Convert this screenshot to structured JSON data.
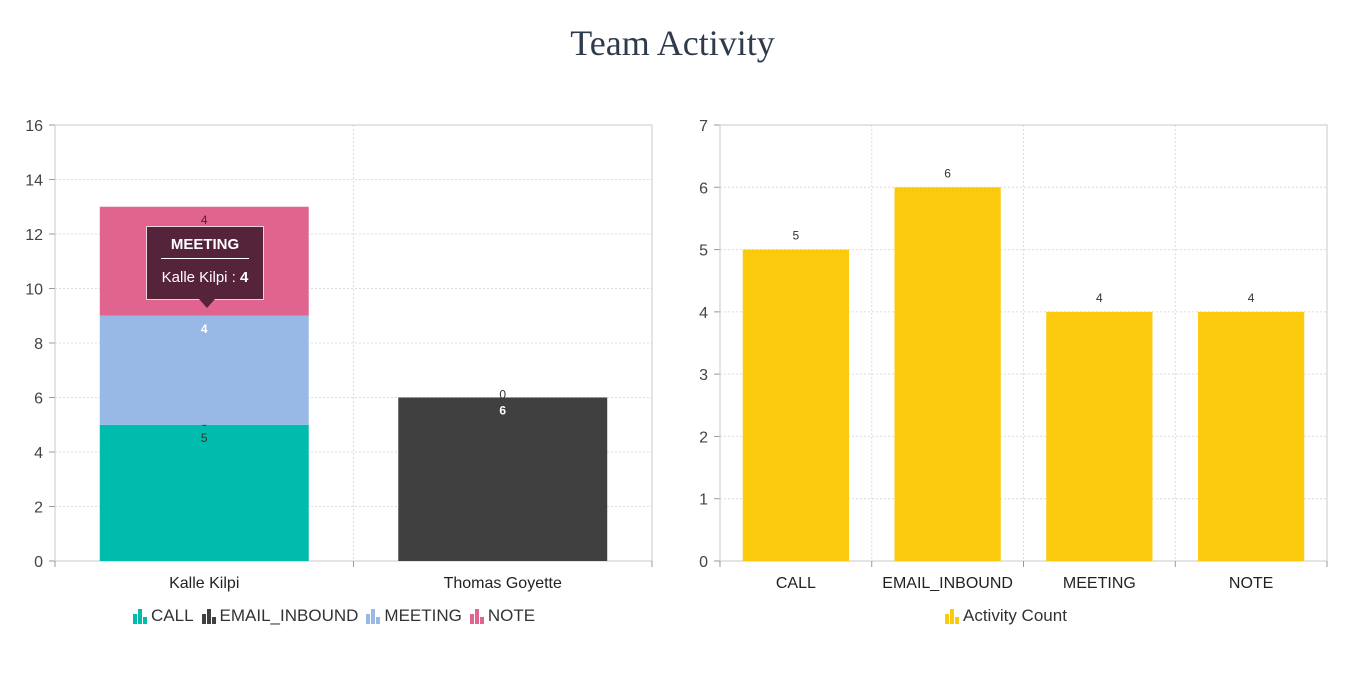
{
  "title": "Team Activity",
  "chart_data": [
    {
      "type": "bar",
      "stacked": true,
      "categories": [
        "Kalle Kilpi",
        "Thomas Goyette"
      ],
      "series": [
        {
          "name": "CALL",
          "values": [
            5,
            0
          ],
          "color": "#00bcad",
          "labels": [
            "5",
            "0"
          ]
        },
        {
          "name": "EMAIL_INBOUND",
          "values": [
            0,
            6
          ],
          "color": "#404040",
          "labels": [
            "0",
            "6"
          ]
        },
        {
          "name": "MEETING",
          "values": [
            4,
            0
          ],
          "color": "#98b9e6",
          "labels": [
            "4",
            "0"
          ]
        },
        {
          "name": "NOTE",
          "values": [
            4,
            0
          ],
          "color": "#e0648e",
          "labels": [
            "4",
            ""
          ]
        }
      ],
      "ylim": [
        0,
        16
      ],
      "yticks": [
        "0",
        "2",
        "4",
        "6",
        "8",
        "10",
        "12",
        "14",
        "16"
      ],
      "grid": true,
      "legend": "bottom",
      "tooltip": {
        "title": "MEETING",
        "label": "Kalle Kilpi : ",
        "value": "4"
      }
    },
    {
      "type": "bar",
      "categories": [
        "CALL",
        "EMAIL_INBOUND",
        "MEETING",
        "NOTE"
      ],
      "series": [
        {
          "name": "Activity Count",
          "values": [
            5,
            6,
            4,
            4
          ],
          "color": "#fcca0c",
          "labels": [
            "5",
            "6",
            "4",
            "4"
          ]
        }
      ],
      "ylim": [
        0,
        7
      ],
      "yticks": [
        "0",
        "1",
        "2",
        "3",
        "4",
        "5",
        "6",
        "7"
      ],
      "grid": true,
      "legend": "bottom"
    }
  ]
}
